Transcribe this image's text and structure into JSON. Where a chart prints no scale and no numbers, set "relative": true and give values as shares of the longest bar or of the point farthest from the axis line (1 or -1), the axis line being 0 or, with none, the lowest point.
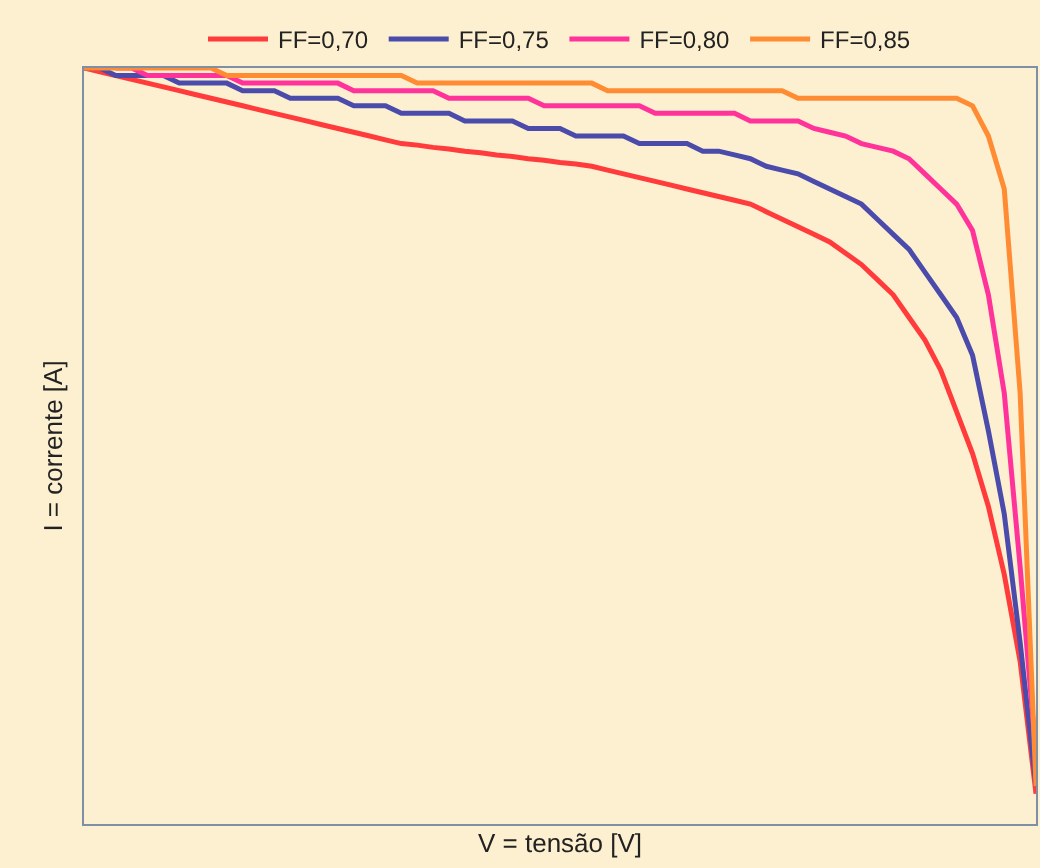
{
  "chart_data": {
    "type": "line",
    "relative": true,
    "xlabel": "V = tensão [V]",
    "ylabel": "I = corrente [A]",
    "legend": "top",
    "marker": "none",
    "line_style": "solid",
    "categories": [
      null,
      null,
      null,
      null,
      null,
      null,
      null,
      null,
      null,
      null,
      null,
      null,
      null,
      null,
      null,
      null,
      null,
      null,
      null,
      null,
      null,
      null,
      null,
      null,
      null,
      null,
      null,
      null,
      null,
      null,
      null,
      null,
      null,
      null,
      null,
      null,
      null,
      null,
      null,
      null,
      null,
      null,
      null,
      null,
      null,
      null,
      null,
      null,
      null,
      null,
      null,
      null,
      null,
      null,
      null,
      null,
      null,
      null,
      null,
      null,
      null
    ],
    "series": [
      {
        "name": "FF=0,70",
        "color": "#ff3b3b",
        "values": [
          1.0,
          0.995,
          0.99,
          0.985,
          0.98,
          0.975,
          0.97,
          0.965,
          0.96,
          0.955,
          0.95,
          0.945,
          0.94,
          0.935,
          0.93,
          0.925,
          0.92,
          0.915,
          0.91,
          0.905,
          0.9,
          0.898,
          0.895,
          0.893,
          0.89,
          0.888,
          0.885,
          0.883,
          0.88,
          0.878,
          0.875,
          0.873,
          0.87,
          0.865,
          0.86,
          0.855,
          0.85,
          0.845,
          0.84,
          0.835,
          0.83,
          0.825,
          0.82,
          0.81,
          0.8,
          0.79,
          0.78,
          0.77,
          0.755,
          0.74,
          0.72,
          0.7,
          0.67,
          0.64,
          0.6,
          0.545,
          0.49,
          0.42,
          0.33,
          0.215,
          0.04
        ]
      },
      {
        "name": "FF=0,75",
        "color": "#4b4bab",
        "values": [
          1.0,
          1.0,
          0.99,
          0.99,
          0.99,
          0.99,
          0.98,
          0.98,
          0.98,
          0.98,
          0.97,
          0.97,
          0.97,
          0.96,
          0.96,
          0.96,
          0.96,
          0.95,
          0.95,
          0.95,
          0.94,
          0.94,
          0.94,
          0.94,
          0.93,
          0.93,
          0.93,
          0.93,
          0.92,
          0.92,
          0.92,
          0.91,
          0.91,
          0.91,
          0.91,
          0.9,
          0.9,
          0.9,
          0.9,
          0.89,
          0.89,
          0.885,
          0.88,
          0.87,
          0.865,
          0.86,
          0.85,
          0.84,
          0.83,
          0.82,
          0.8,
          0.78,
          0.76,
          0.73,
          0.7,
          0.67,
          0.62,
          0.52,
          0.41,
          0.24,
          0.05
        ]
      },
      {
        "name": "FF=0,80",
        "color": "#ff3399",
        "values": [
          null,
          null,
          1.0,
          1.0,
          0.99,
          0.99,
          0.99,
          0.99,
          0.99,
          0.99,
          0.98,
          0.98,
          0.98,
          0.98,
          0.98,
          0.98,
          0.98,
          0.97,
          0.97,
          0.97,
          0.97,
          0.97,
          0.97,
          0.96,
          0.96,
          0.96,
          0.96,
          0.96,
          0.96,
          0.95,
          0.95,
          0.95,
          0.95,
          0.95,
          0.95,
          0.95,
          0.94,
          0.94,
          0.94,
          0.94,
          0.94,
          0.94,
          0.93,
          0.93,
          0.93,
          0.93,
          0.92,
          0.915,
          0.91,
          0.9,
          0.895,
          0.89,
          0.88,
          0.86,
          0.84,
          0.82,
          0.785,
          0.7,
          0.57,
          0.34,
          0.09
        ]
      },
      {
        "name": "FF=0,85",
        "color": "#ff8c33",
        "values": [
          1.0,
          1.0,
          1.0,
          1.0,
          1.0,
          1.0,
          1.0,
          1.0,
          1.0,
          0.99,
          0.99,
          0.99,
          0.99,
          0.99,
          0.99,
          0.99,
          0.99,
          0.99,
          0.99,
          0.99,
          0.99,
          0.98,
          0.98,
          0.98,
          0.98,
          0.98,
          0.98,
          0.98,
          0.98,
          0.98,
          0.98,
          0.98,
          0.98,
          0.97,
          0.97,
          0.97,
          0.97,
          0.97,
          0.97,
          0.97,
          0.97,
          0.97,
          0.97,
          0.97,
          0.97,
          0.96,
          0.96,
          0.96,
          0.96,
          0.96,
          0.96,
          0.96,
          0.96,
          0.96,
          0.96,
          0.96,
          0.95,
          0.91,
          0.84,
          0.57,
          0.05
        ]
      }
    ]
  }
}
